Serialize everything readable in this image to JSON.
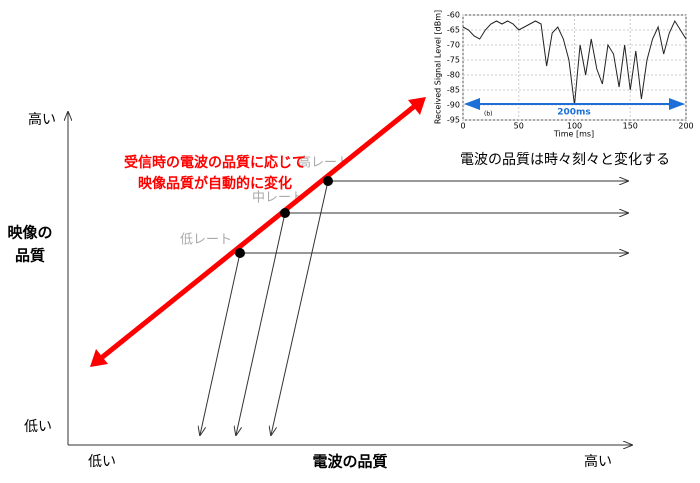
{
  "axes": {
    "y_high": "高い",
    "y_low": "低い",
    "y_label_lines": [
      "映像の",
      "品質"
    ],
    "x_low": "低い",
    "x_label": "電波の品質",
    "x_high": "高い"
  },
  "annotation_lines": [
    "受信時の電波の品質に応じて",
    "映像品質が自動的に変化"
  ],
  "caption": "電波の品質は時々刻々と変化する",
  "rates": [
    "低レート",
    "中レート",
    "高レート"
  ],
  "inset_chart": {
    "type": "line",
    "xlabel": "Time [ms]",
    "ylabel": "Received Signal Level [dBm]",
    "panel_label": "(b)",
    "span_label": "200ms",
    "x": [
      0,
      5,
      10,
      15,
      20,
      25,
      30,
      35,
      40,
      45,
      50,
      55,
      60,
      65,
      70,
      75,
      80,
      85,
      90,
      95,
      100,
      105,
      110,
      115,
      120,
      125,
      130,
      135,
      140,
      145,
      150,
      155,
      160,
      165,
      170,
      175,
      180,
      185,
      190,
      195,
      200
    ],
    "values": [
      -64,
      -65,
      -67,
      -68,
      -65,
      -63,
      -62,
      -63,
      -62,
      -63,
      -65,
      -64,
      -63,
      -62,
      -63,
      -77,
      -66,
      -64,
      -68,
      -75,
      -90,
      -70,
      -80,
      -68,
      -78,
      -83,
      -70,
      -73,
      -84,
      -70,
      -85,
      -72,
      -88,
      -75,
      -68,
      -64,
      -73,
      -66,
      -62,
      -65,
      -68
    ],
    "xlim": [
      0,
      200
    ],
    "ylim": [
      -95,
      -60
    ],
    "xticks": [
      0,
      50,
      100,
      150,
      200
    ],
    "yticks": [
      -60,
      -65,
      -70,
      -75,
      -80,
      -85,
      -90,
      -95
    ],
    "grid": true,
    "color": "#222222"
  }
}
